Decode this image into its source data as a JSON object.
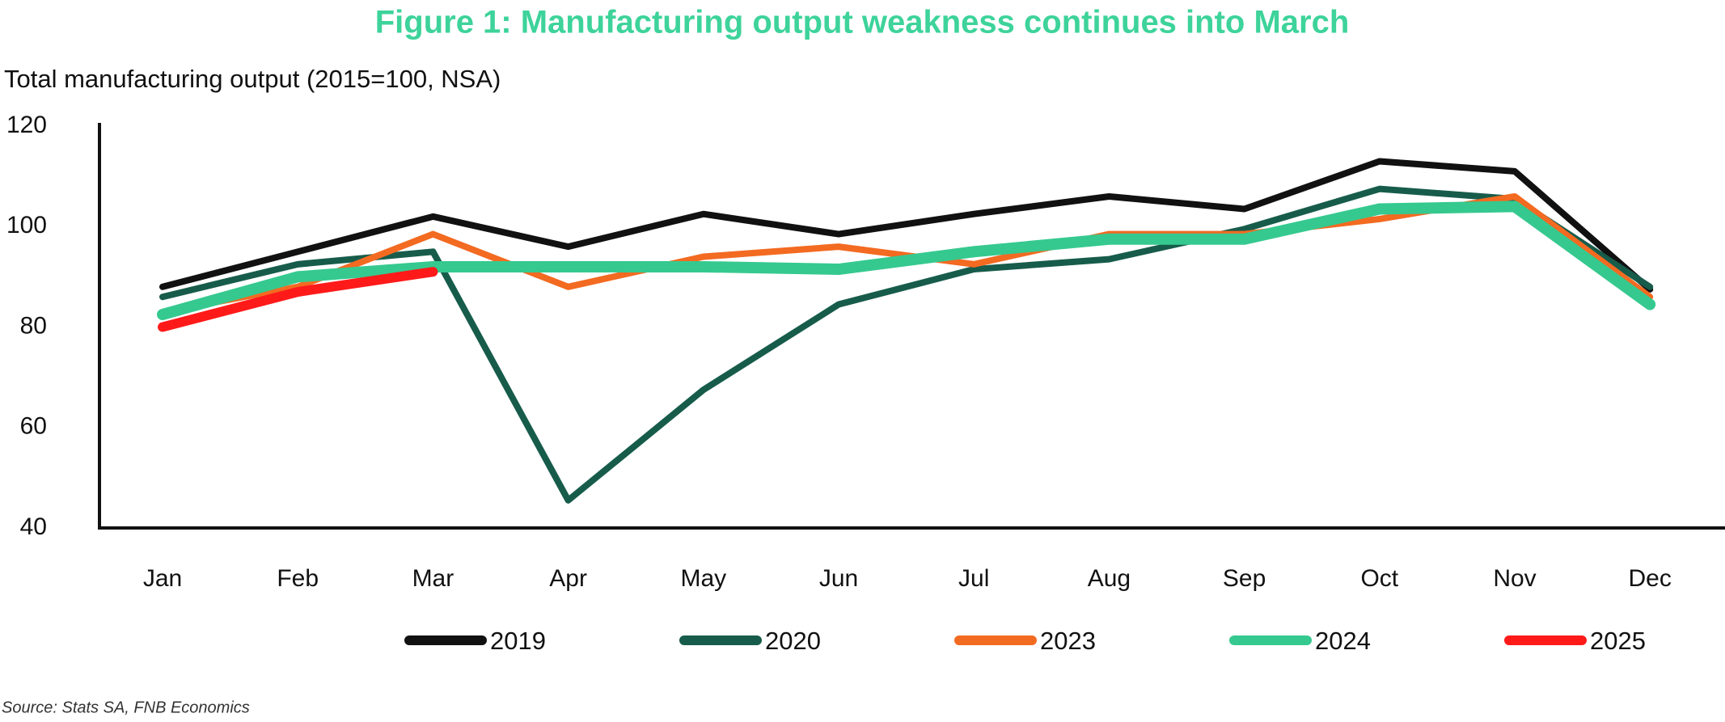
{
  "chart_data": {
    "type": "line",
    "title": "Figure 1: Manufacturing output weakness continues into March",
    "subtitle": "Total manufacturing output (2015=100, NSA)",
    "source": "Source: Stats SA, FNB Economics",
    "categories": [
      "Jan",
      "Feb",
      "Mar",
      "Apr",
      "May",
      "Jun",
      "Jul",
      "Aug",
      "Sep",
      "Oct",
      "Nov",
      "Dec"
    ],
    "series": [
      {
        "name": "2019",
        "color": "#111111",
        "values": [
          88,
          95,
          102,
          96,
          102.5,
          98.5,
          102.5,
          106,
          103.5,
          113,
          111,
          87.5
        ]
      },
      {
        "name": "2020",
        "color": "#175c4b",
        "values": [
          86,
          92.5,
          95,
          45.5,
          67.5,
          84.5,
          91.5,
          93.5,
          99.5,
          107.5,
          105.5,
          88
        ]
      },
      {
        "name": "2023",
        "color": "#f36a21",
        "values": [
          83,
          88,
          98.5,
          88,
          94,
          96,
          92.5,
          98.5,
          98.5,
          101.5,
          106,
          86
        ]
      },
      {
        "name": "2024",
        "color": "#35c98f",
        "values": [
          82.5,
          90,
          92,
          92,
          92,
          91.5,
          95,
          97.5,
          97.5,
          103.5,
          104,
          84.5
        ]
      },
      {
        "name": "2025",
        "color": "#ff1a1a",
        "values": [
          80,
          87,
          91,
          null,
          null,
          null,
          null,
          null,
          null,
          null,
          null,
          null
        ]
      }
    ],
    "ylim": [
      40,
      120
    ],
    "yticks": [
      40,
      60,
      80,
      100,
      120
    ],
    "grid": false
  }
}
